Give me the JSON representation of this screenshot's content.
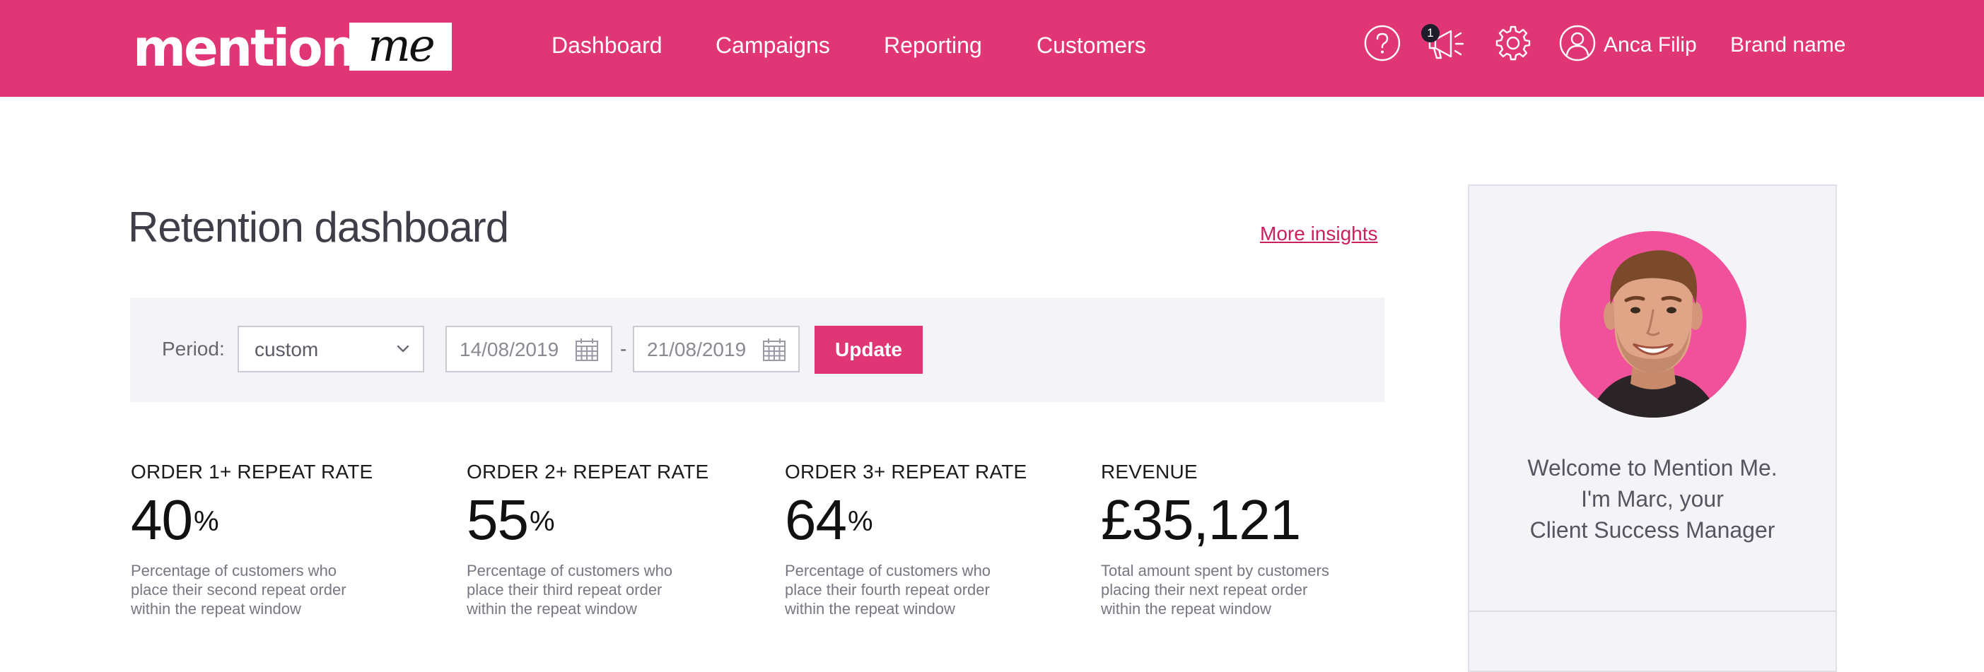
{
  "header": {
    "logo_word": "mention",
    "logo_script": "me",
    "nav": [
      {
        "label": "Dashboard"
      },
      {
        "label": "Campaigns"
      },
      {
        "label": "Reporting"
      },
      {
        "label": "Customers"
      }
    ],
    "notification_count": "1",
    "user_name": "Anca Filip",
    "brand_name": "Brand name",
    "icons": [
      "help-icon",
      "megaphone-icon",
      "gear-icon",
      "user-icon"
    ]
  },
  "main": {
    "title": "Retention dashboard",
    "more_insights": "More insights",
    "filter": {
      "period_label": "Period:",
      "period_value": "custom",
      "date_from": "14/08/2019",
      "date_separator": "-",
      "date_to": "21/08/2019",
      "update_label": "Update"
    },
    "metrics": [
      {
        "label": "ORDER 1+ REPEAT RATE",
        "value": "40",
        "unit": "%",
        "desc": [
          "Percentage of customers who",
          "place their second repeat order",
          "within the repeat window"
        ]
      },
      {
        "label": "ORDER 2+ REPEAT RATE",
        "value": "55",
        "unit": "%",
        "desc": [
          "Percentage of customers who",
          "place their third repeat order",
          "within the repeat window"
        ]
      },
      {
        "label": "ORDER 3+ REPEAT RATE",
        "value": "64",
        "unit": "%",
        "desc": [
          "Percentage of customers who",
          "place their fourth repeat order",
          "within the repeat window"
        ]
      },
      {
        "label": "REVENUE",
        "value": "£35,121",
        "unit": "",
        "desc": [
          "Total amount spent by customers",
          "placing their next repeat order",
          "within the repeat window"
        ]
      }
    ]
  },
  "side_panel": {
    "welcome_lines": [
      "Welcome to Mention Me.",
      "I'm Marc, your",
      "Client Success Manager"
    ]
  },
  "colors": {
    "brand": "#e03676",
    "panel_bg": "#f4f3f8",
    "link": "#c9205e"
  }
}
